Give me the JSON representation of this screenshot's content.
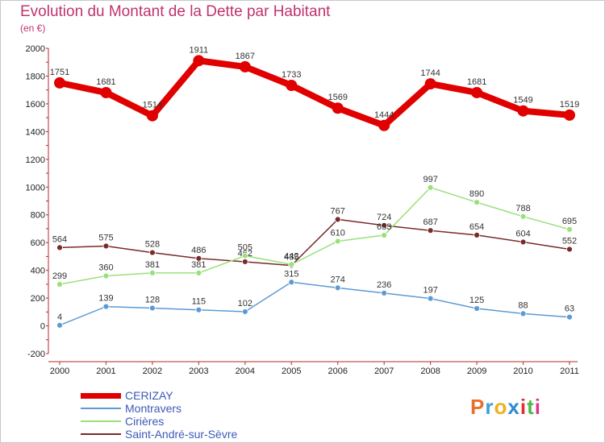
{
  "title": "Evolution du Montant de la Dette par Habitant",
  "subtitle": "(en €)",
  "logo": {
    "text": "Proxiti",
    "colors": [
      "#e8702a",
      "#3aa0d8",
      "#f0b020",
      "#2c8ad0",
      "#e03030",
      "#4cb848",
      "#d83a8c"
    ]
  },
  "chart_data": {
    "type": "line",
    "title": "Evolution du Montant de la Dette par Habitant",
    "subtitle": "(en €)",
    "categories": [
      "2000",
      "2001",
      "2002",
      "2003",
      "2004",
      "2005",
      "2006",
      "2007",
      "2008",
      "2009",
      "2010",
      "2011"
    ],
    "ylim": [
      -200,
      2000
    ],
    "yticks": [
      -200,
      0,
      200,
      400,
      600,
      800,
      1000,
      1200,
      1400,
      1600,
      1800,
      2000
    ],
    "grid": false,
    "legend_position": "bottom-left",
    "series": [
      {
        "name": "CERIZAY",
        "color": "#e00000",
        "values": [
          1751,
          1681,
          1514,
          1911,
          1867,
          1733,
          1569,
          1444,
          1744,
          1681,
          1549,
          1519
        ]
      },
      {
        "name": "Montravers",
        "color": "#5b9bd5",
        "values": [
          4,
          139,
          128,
          115,
          102,
          315,
          274,
          236,
          197,
          125,
          88,
          63
        ]
      },
      {
        "name": "Cirières",
        "color": "#99e07a",
        "values": [
          299,
          360,
          381,
          381,
          505,
          442,
          610,
          653,
          997,
          890,
          788,
          695
        ]
      },
      {
        "name": "Saint-André-sur-Sèvre",
        "color": "#7a2a2a",
        "values": [
          564,
          575,
          528,
          486,
          462,
          435,
          767,
          724,
          687,
          654,
          604,
          552
        ]
      }
    ]
  }
}
